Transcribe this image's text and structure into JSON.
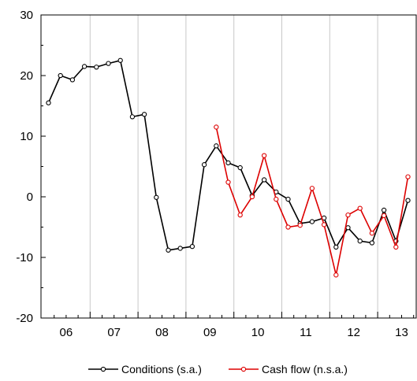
{
  "chart_data": {
    "type": "line",
    "title": "",
    "xlabel": "",
    "ylabel": "",
    "ylim": [
      -20,
      30
    ],
    "y_ticks": [
      "30",
      "20",
      "10",
      "0",
      "-10",
      "-20"
    ],
    "x_tick_labels": [
      "06",
      "07",
      "08",
      "09",
      "10",
      "11",
      "12",
      "13"
    ],
    "grid": "vertical",
    "legend": "bottom",
    "series": [
      {
        "name": "Conditions (s.a.)",
        "color": "#000000",
        "start_quarter": 0,
        "values": [
          15.5,
          20.0,
          19.3,
          21.5,
          21.4,
          22.0,
          22.5,
          13.2,
          13.6,
          -0.1,
          -8.8,
          -8.5,
          -8.2,
          5.3,
          8.4,
          5.6,
          4.8,
          0.2,
          2.8,
          0.8,
          -0.4,
          -4.4,
          -4.1,
          -3.5,
          -8.3,
          -5.1,
          -7.3,
          -7.6,
          -2.2,
          -7.3,
          -0.6
        ]
      },
      {
        "name": "Cash flow (n.s.a.)",
        "color": "#dd0000",
        "start_quarter": 14,
        "values": [
          11.5,
          2.4,
          -3.0,
          0.0,
          6.8,
          -0.4,
          -5.0,
          -4.7,
          1.4,
          -4.6,
          -12.9,
          -3.0,
          -1.9,
          -6.0,
          -3.1,
          -8.3,
          3.3
        ]
      }
    ]
  }
}
